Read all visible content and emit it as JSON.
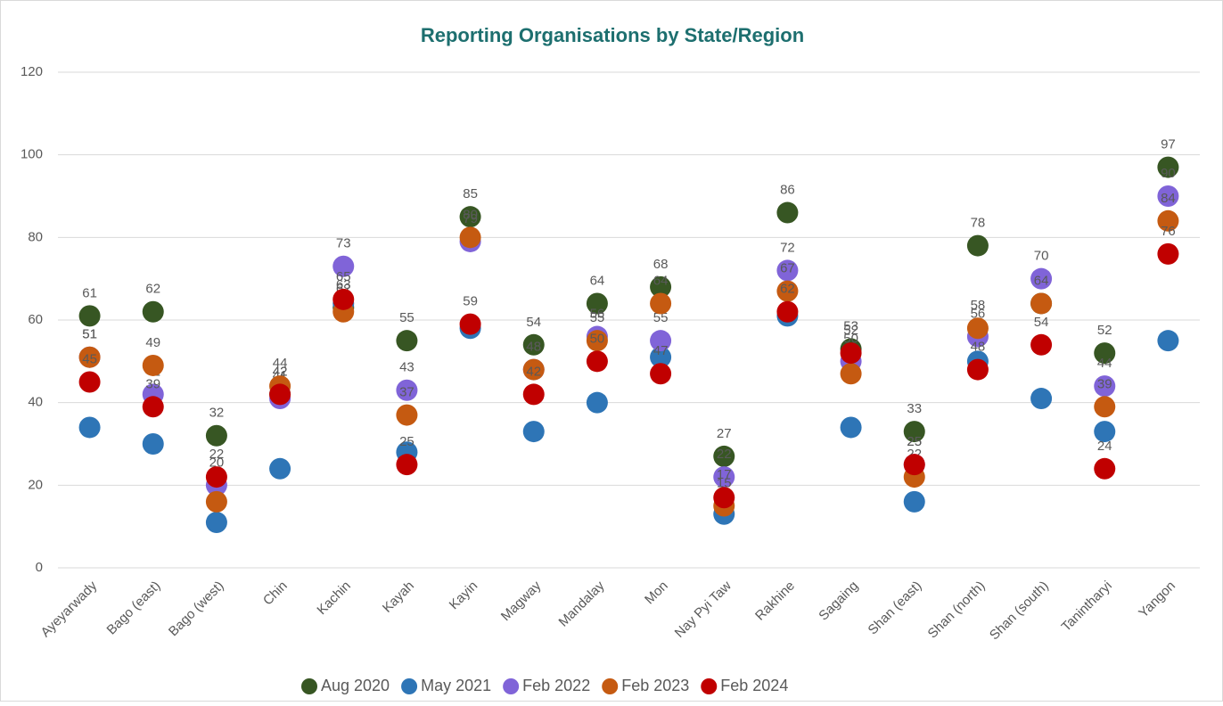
{
  "chart_data": {
    "type": "dot",
    "title": "Reporting Organisations by State/Region",
    "categories": [
      "Ayeyarwady",
      "Bago (east)",
      "Bago (west)",
      "Chin",
      "Kachin",
      "Kayah",
      "Kayin",
      "Magway",
      "Mandalay",
      "Mon",
      "Nay Pyi Taw",
      "Rakhine",
      "Sagaing",
      "Shan (east)",
      "Shan (north)",
      "Shan (south)",
      "Tanintharyi",
      "Yangon"
    ],
    "series": [
      {
        "name": "Aug 2020",
        "color": "#375623",
        "data_labels": true,
        "values": [
          61,
          62,
          32,
          42,
          63,
          55,
          85,
          54,
          64,
          68,
          27,
          86,
          53,
          33,
          78,
          64,
          52,
          97
        ]
      },
      {
        "name": "May 2021",
        "color": "#2e75b6",
        "data_labels": false,
        "values": [
          34,
          30,
          11,
          24,
          64,
          28,
          58,
          33,
          40,
          51,
          13,
          61,
          34,
          16,
          50,
          41,
          33,
          55
        ]
      },
      {
        "name": "Feb 2022",
        "color": "#8064d8",
        "data_labels": true,
        "values": [
          51,
          42,
          20,
          41,
          73,
          43,
          79,
          48,
          56,
          55,
          22,
          72,
          50,
          25,
          56,
          70,
          44,
          90
        ]
      },
      {
        "name": "Feb 2023",
        "color": "#c55a11",
        "data_labels": true,
        "values": [
          51,
          49,
          16,
          44,
          62,
          37,
          80,
          48,
          55,
          64,
          15,
          67,
          47,
          22,
          58,
          64,
          39,
          84
        ]
      },
      {
        "name": "Feb 2024",
        "color": "#c00000",
        "data_labels": true,
        "values": [
          45,
          39,
          22,
          42,
          65,
          25,
          59,
          42,
          50,
          47,
          17,
          62,
          52,
          25,
          48,
          54,
          24,
          76
        ]
      }
    ],
    "ylim": [
      0,
      120
    ],
    "yticks": [
      0,
      20,
      40,
      60,
      80,
      100,
      120
    ],
    "grid": true,
    "legend": "bottom"
  }
}
